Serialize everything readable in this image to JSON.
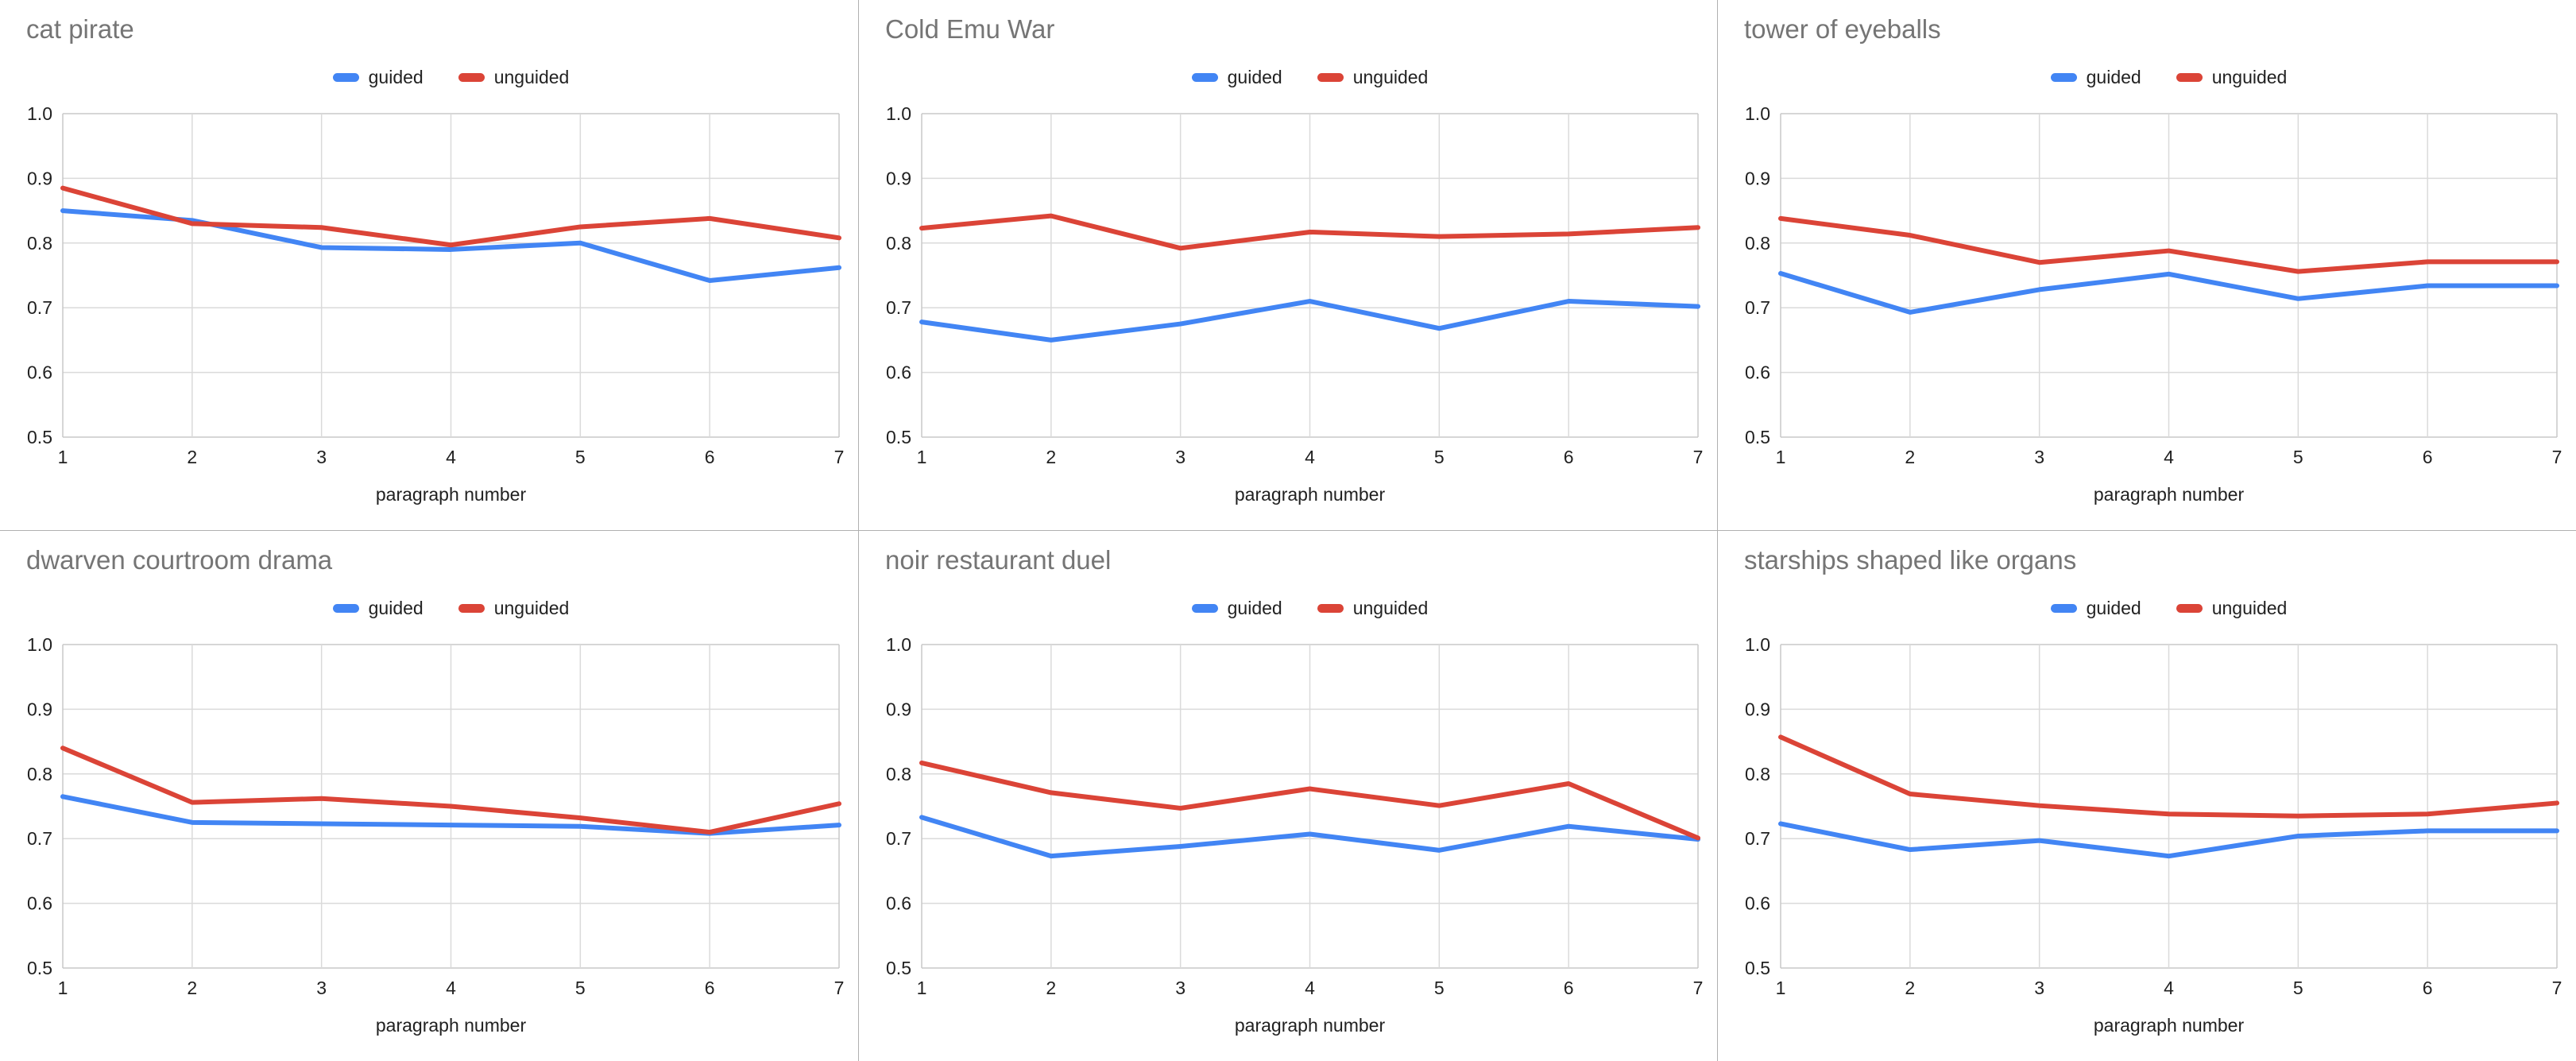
{
  "page": {
    "background": "#ffffff",
    "colors": {
      "separator": "#b0b0b0",
      "gridline": "#dadada",
      "plot_border": "#c8c8c8",
      "tick_text": "#212121",
      "title_text": "#757575",
      "axis_title_text": "#212121"
    }
  },
  "legend": {
    "items": [
      {
        "label": "guided",
        "color": "#4285f4"
      },
      {
        "label": "unguided",
        "color": "#db4437"
      }
    ]
  },
  "axes": {
    "x_label": "paragraph number",
    "x_ticks": [
      "1",
      "2",
      "3",
      "4",
      "5",
      "6",
      "7"
    ],
    "y_ticks": [
      "1.0",
      "0.9",
      "0.8",
      "0.7",
      "0.6",
      "0.5"
    ],
    "y_min": 0.5,
    "y_max": 1.0,
    "grid": true,
    "legend_position": "top-center"
  },
  "chart_data": [
    {
      "type": "line",
      "title": "cat pirate",
      "xlabel": "paragraph number",
      "ylabel": "",
      "x": [
        1,
        2,
        3,
        4,
        5,
        6,
        7
      ],
      "ylim": [
        0.5,
        1.0
      ],
      "series": [
        {
          "name": "guided",
          "values": [
            0.85,
            0.835,
            0.793,
            0.79,
            0.8,
            0.742,
            0.762
          ]
        },
        {
          "name": "unguided",
          "values": [
            0.885,
            0.83,
            0.824,
            0.797,
            0.825,
            0.838,
            0.808
          ]
        }
      ]
    },
    {
      "type": "line",
      "title": "Cold Emu War",
      "xlabel": "paragraph number",
      "ylabel": "",
      "x": [
        1,
        2,
        3,
        4,
        5,
        6,
        7
      ],
      "ylim": [
        0.5,
        1.0
      ],
      "series": [
        {
          "name": "guided",
          "values": [
            0.678,
            0.65,
            0.675,
            0.71,
            0.668,
            0.71,
            0.702
          ]
        },
        {
          "name": "unguided",
          "values": [
            0.823,
            0.842,
            0.792,
            0.817,
            0.81,
            0.814,
            0.824
          ]
        }
      ]
    },
    {
      "type": "line",
      "title": "tower of eyeballs",
      "xlabel": "paragraph number",
      "ylabel": "",
      "x": [
        1,
        2,
        3,
        4,
        5,
        6,
        7
      ],
      "ylim": [
        0.5,
        1.0
      ],
      "series": [
        {
          "name": "guided",
          "values": [
            0.753,
            0.693,
            0.728,
            0.752,
            0.714,
            0.734,
            0.734
          ]
        },
        {
          "name": "unguided",
          "values": [
            0.838,
            0.812,
            0.77,
            0.788,
            0.756,
            0.771,
            0.771
          ]
        }
      ]
    },
    {
      "type": "line",
      "title": "dwarven courtroom drama",
      "xlabel": "paragraph number",
      "ylabel": "",
      "x": [
        1,
        2,
        3,
        4,
        5,
        6,
        7
      ],
      "ylim": [
        0.5,
        1.0
      ],
      "series": [
        {
          "name": "guided",
          "values": [
            0.765,
            0.725,
            0.723,
            0.721,
            0.719,
            0.708,
            0.721
          ]
        },
        {
          "name": "unguided",
          "values": [
            0.84,
            0.756,
            0.762,
            0.75,
            0.732,
            0.71,
            0.754
          ]
        }
      ]
    },
    {
      "type": "line",
      "title": "noir restaurant duel",
      "xlabel": "paragraph number",
      "ylabel": "",
      "x": [
        1,
        2,
        3,
        4,
        5,
        6,
        7
      ],
      "ylim": [
        0.5,
        1.0
      ],
      "series": [
        {
          "name": "guided",
          "values": [
            0.733,
            0.673,
            0.688,
            0.707,
            0.682,
            0.719,
            0.699
          ]
        },
        {
          "name": "unguided",
          "values": [
            0.817,
            0.771,
            0.747,
            0.777,
            0.751,
            0.785,
            0.701
          ]
        }
      ]
    },
    {
      "type": "line",
      "title": "starships shaped like organs",
      "xlabel": "paragraph number",
      "ylabel": "",
      "x": [
        1,
        2,
        3,
        4,
        5,
        6,
        7
      ],
      "ylim": [
        0.5,
        1.0
      ],
      "series": [
        {
          "name": "guided",
          "values": [
            0.723,
            0.683,
            0.697,
            0.673,
            0.704,
            0.712,
            0.712
          ]
        },
        {
          "name": "unguided",
          "values": [
            0.857,
            0.769,
            0.751,
            0.738,
            0.735,
            0.738,
            0.755
          ]
        }
      ]
    }
  ]
}
